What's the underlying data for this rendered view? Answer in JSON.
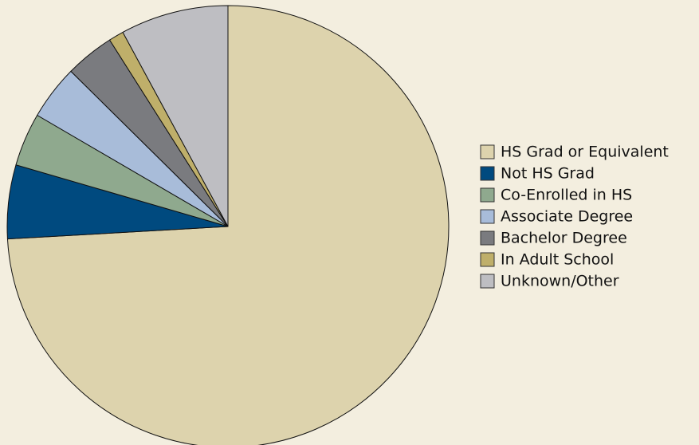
{
  "chart_data": {
    "type": "pie",
    "categories": [
      "HS Grad or Equivalent",
      "Not HS Grad",
      "Co-Enrolled in HS",
      "Associate Degree",
      "Bachelor Degree",
      "In Adult School",
      "Unknown/Other"
    ],
    "values": [
      74.1,
      5.4,
      3.9,
      4.0,
      3.6,
      1.1,
      7.9
    ],
    "colors": [
      "#ddd3ad",
      "#004a7f",
      "#8fa98e",
      "#a8bcd9",
      "#7a7b7f",
      "#bfaf6a",
      "#bebec2"
    ],
    "legend": "right"
  }
}
